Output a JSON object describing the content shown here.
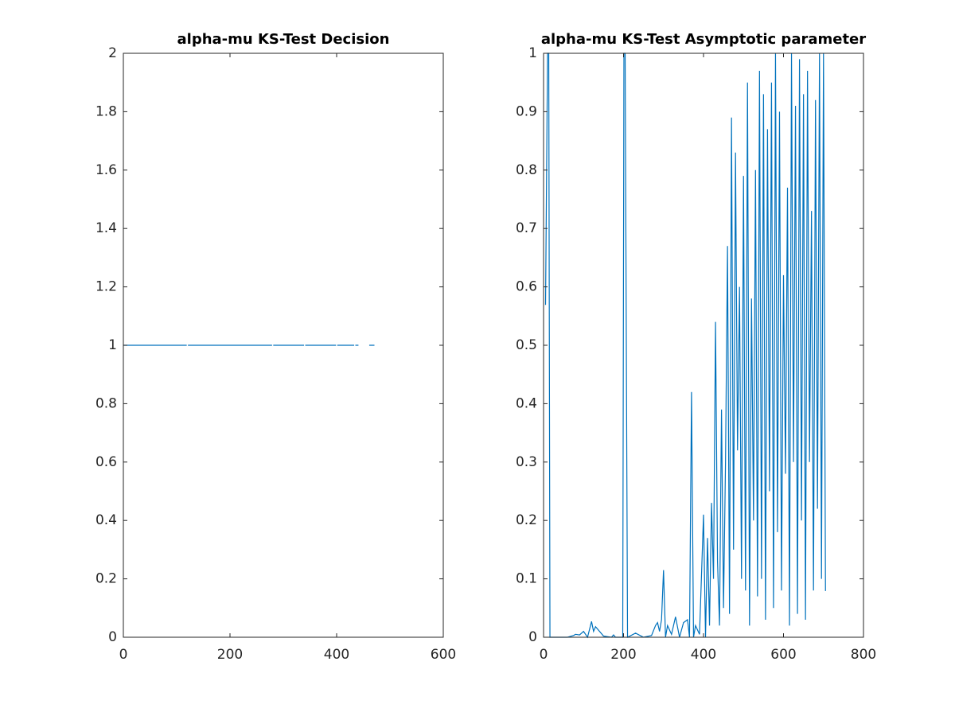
{
  "chart_data": [
    {
      "type": "line",
      "title": "alpha-mu KS-Test Decision",
      "x": [
        1,
        60,
        118,
        120,
        122,
        200,
        278,
        280,
        282,
        310,
        338,
        340,
        342,
        370,
        398,
        400,
        402,
        425,
        432,
        434,
        436,
        440,
        444,
        450,
        458,
        462,
        470
      ],
      "values": [
        1,
        1,
        1,
        null,
        1,
        1,
        1,
        null,
        1,
        1,
        1,
        null,
        1,
        1,
        1,
        null,
        1,
        1,
        1,
        null,
        1,
        1,
        null,
        1,
        null,
        1,
        1
      ],
      "color": "#0072bd",
      "xlim": [
        0,
        600
      ],
      "xticks": [
        0,
        200,
        400,
        600
      ],
      "ylim": [
        0,
        2
      ],
      "yticks": [
        0,
        0.2,
        0.4,
        0.6,
        0.8,
        1,
        1.2,
        1.4,
        1.6,
        1.8,
        2
      ]
    },
    {
      "type": "line",
      "title": "alpha-mu KS-Test Asymptotic parameter",
      "x": [
        5,
        10,
        13,
        16,
        20,
        40,
        60,
        75,
        80,
        90,
        100,
        110,
        120,
        125,
        130,
        150,
        170,
        175,
        180,
        198,
        201,
        204,
        210,
        230,
        250,
        270,
        280,
        285,
        290,
        295,
        300,
        305,
        310,
        320,
        330,
        340,
        350,
        360,
        365,
        370,
        375,
        380,
        390,
        400,
        405,
        410,
        415,
        420,
        425,
        430,
        435,
        440,
        445,
        450,
        455,
        460,
        465,
        470,
        475,
        480,
        485,
        490,
        495,
        500,
        505,
        510,
        515,
        520,
        525,
        530,
        535,
        540,
        545,
        550,
        555,
        560,
        565,
        570,
        575,
        580,
        585,
        590,
        595,
        600,
        605,
        610,
        615,
        620,
        625,
        630,
        635,
        640,
        645,
        650,
        655,
        660,
        665,
        670,
        675,
        680,
        685,
        690,
        695,
        700,
        705
      ],
      "values": [
        0.57,
        1,
        1,
        0,
        0,
        0,
        0,
        0.003,
        0.005,
        0.004,
        0.01,
        0,
        0.027,
        0.01,
        0.018,
        0.002,
        0,
        0.004,
        0,
        0,
        1,
        1,
        0,
        0.007,
        0,
        0.003,
        0.02,
        0.025,
        0.01,
        0.03,
        0.115,
        0,
        0.02,
        0.005,
        0.035,
        0,
        0.025,
        0.03,
        0,
        0.42,
        0,
        0.02,
        0.005,
        0.21,
        0,
        0.17,
        0.02,
        0.23,
        0.1,
        0.54,
        0.13,
        0.02,
        0.39,
        0.05,
        0.3,
        0.67,
        0.04,
        0.89,
        0.15,
        0.83,
        0.32,
        0.6,
        0.1,
        0.79,
        0.08,
        0.95,
        0.02,
        0.58,
        0.2,
        0.8,
        0.07,
        0.97,
        0.1,
        0.93,
        0.03,
        0.87,
        0.25,
        0.95,
        0.05,
        1,
        0.18,
        0.9,
        0.08,
        0.62,
        0.28,
        0.77,
        0.02,
        1,
        0.3,
        0.91,
        0.04,
        0.99,
        0.2,
        0.93,
        0.03,
        0.97,
        0.3,
        0.73,
        0.08,
        0.92,
        0.22,
        1,
        0.1,
        1,
        0.08
      ],
      "color": "#0072bd",
      "xlim": [
        0,
        800
      ],
      "xticks": [
        0,
        200,
        400,
        600,
        800
      ],
      "ylim": [
        0,
        1
      ],
      "yticks": [
        0,
        0.1,
        0.2,
        0.3,
        0.4,
        0.5,
        0.6,
        0.7,
        0.8,
        0.9,
        1
      ]
    }
  ]
}
